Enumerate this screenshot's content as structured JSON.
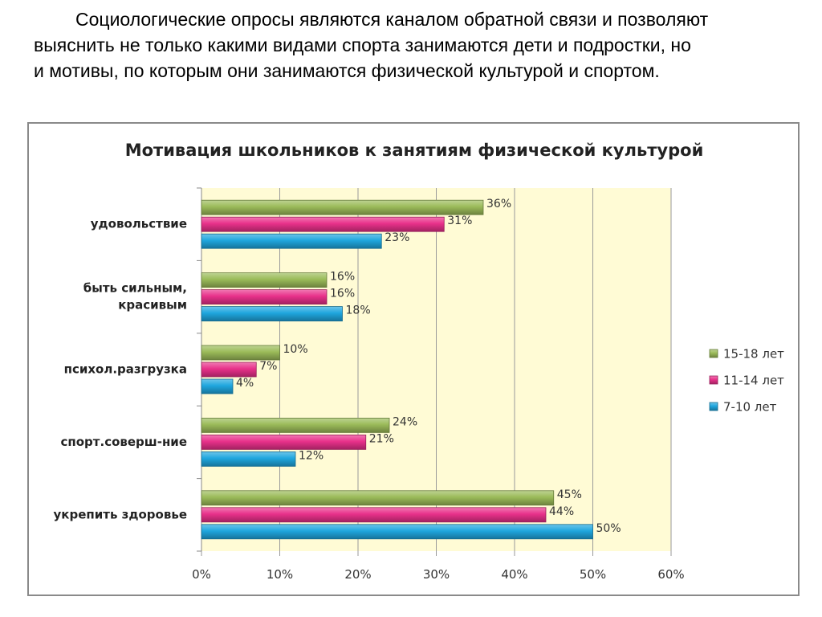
{
  "intro": {
    "lines": [
      "Социологические опросы являются каналом обратной связи и позволяют",
      "выяснить не только какими видами спорта занимаются дети и подростки, но",
      "и мотивы, по которым они занимаются физической культурой и спортом."
    ]
  },
  "chart_data": {
    "type": "bar",
    "orientation": "horizontal",
    "title": "Мотивация школьников к занятиям физической культурой",
    "categories": [
      [
        "удовольствие"
      ],
      [
        "быть сильным,",
        "красивым"
      ],
      [
        "психол.разгрузка"
      ],
      [
        "спорт.соверш-ние"
      ],
      [
        "укрепить здоровье"
      ]
    ],
    "series": [
      {
        "name": "15-18 лет",
        "values": [
          36,
          16,
          10,
          24,
          45
        ],
        "color": "#9bbb59"
      },
      {
        "name": "11-14 лет",
        "values": [
          31,
          16,
          7,
          21,
          44
        ],
        "color": "#e8318a"
      },
      {
        "name": "7-10 лет",
        "values": [
          23,
          18,
          4,
          12,
          50
        ],
        "color": "#1fa6de"
      }
    ],
    "data_labels": [
      [
        "36%",
        "31%",
        "23%"
      ],
      [
        "16%",
        "16%",
        "18%"
      ],
      [
        "10%",
        "7%",
        "4%"
      ],
      [
        "24%",
        "21%",
        "12%"
      ],
      [
        "45%",
        "44%",
        "50%"
      ]
    ],
    "xticks": [
      "0%",
      "10%",
      "20%",
      "30%",
      "40%",
      "50%",
      "60%"
    ],
    "xlim": [
      0,
      60
    ],
    "grid": true,
    "plot_background": "#fffbd5",
    "legend_position": "right",
    "xlabel": "",
    "ylabel": ""
  }
}
